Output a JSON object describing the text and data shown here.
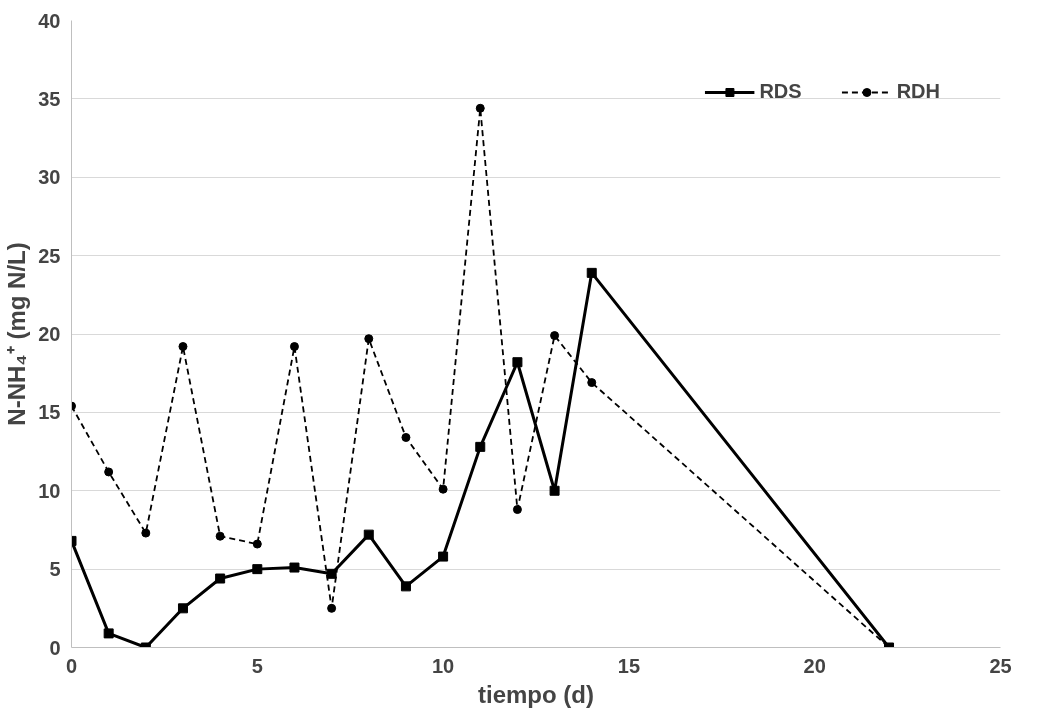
{
  "chart_data": {
    "type": "line",
    "xlabel": "tiempo (d)",
    "ylabel": "N-NH₄⁺ (mg N/L)",
    "xlim": [
      0,
      25
    ],
    "xticks": [
      0,
      5,
      10,
      15,
      20,
      25
    ],
    "ylim": [
      0,
      40
    ],
    "yticks": [
      0,
      5,
      10,
      15,
      20,
      25,
      30,
      35,
      40
    ],
    "grid": "y",
    "legend": "top right",
    "series": [
      {
        "name": "RDS",
        "color": "#000000",
        "marker": "square",
        "line_style": "solid",
        "x": [
          0,
          1,
          2,
          3,
          4,
          5,
          6,
          7,
          8,
          9,
          10,
          11,
          12,
          13,
          14,
          22
        ],
        "values": [
          6.8,
          0.9,
          0,
          2.5,
          4.4,
          5.0,
          5.1,
          4.7,
          7.2,
          3.9,
          5.8,
          12.8,
          18.2,
          10.0,
          23.9,
          0
        ]
      },
      {
        "name": "RDH",
        "color": "#000000",
        "marker": "circle",
        "line_style": "dashed",
        "x": [
          0,
          1,
          2,
          3,
          4,
          5,
          6,
          7,
          8,
          9,
          10,
          11,
          12,
          13,
          14,
          22
        ],
        "values": [
          15.4,
          11.2,
          7.3,
          19.2,
          7.1,
          6.6,
          19.2,
          2.5,
          19.7,
          13.4,
          10.1,
          34.4,
          8.8,
          19.9,
          16.9,
          0
        ]
      }
    ]
  }
}
